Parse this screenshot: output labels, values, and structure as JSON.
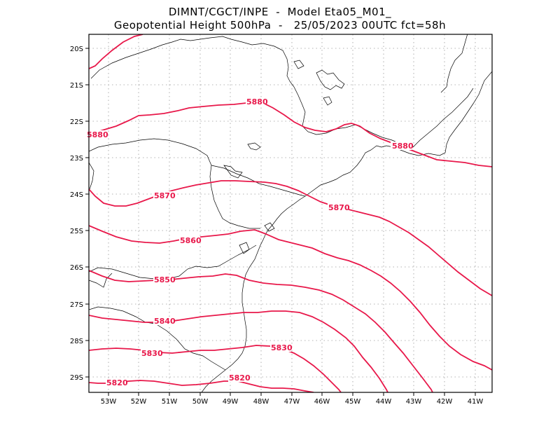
{
  "title_line1": "DIMNT/CGCT/INPE  -  Model Eta05_M01_",
  "title_line2": "Geopotential Height 500hPa  -   25/05/2023 00UTC fct=58h",
  "colors": {
    "contour": "#e8184a",
    "coast": "#000000",
    "grid": "#999999",
    "frame": "#000000"
  },
  "lon_labels": [
    "53W",
    "52W",
    "51W",
    "50W",
    "49W",
    "48W",
    "47W",
    "46W",
    "45W",
    "44W",
    "43W",
    "42W",
    "41W"
  ],
  "lat_labels": [
    "20S",
    "21S",
    "22S",
    "23S",
    "24S",
    "25S",
    "26S",
    "27S",
    "28S",
    "29S"
  ],
  "contour_labels": [
    "5880",
    "5880",
    "5880",
    "5870",
    "5870",
    "5860",
    "5850",
    "5840",
    "5830",
    "5830",
    "5820",
    "5820"
  ]
}
